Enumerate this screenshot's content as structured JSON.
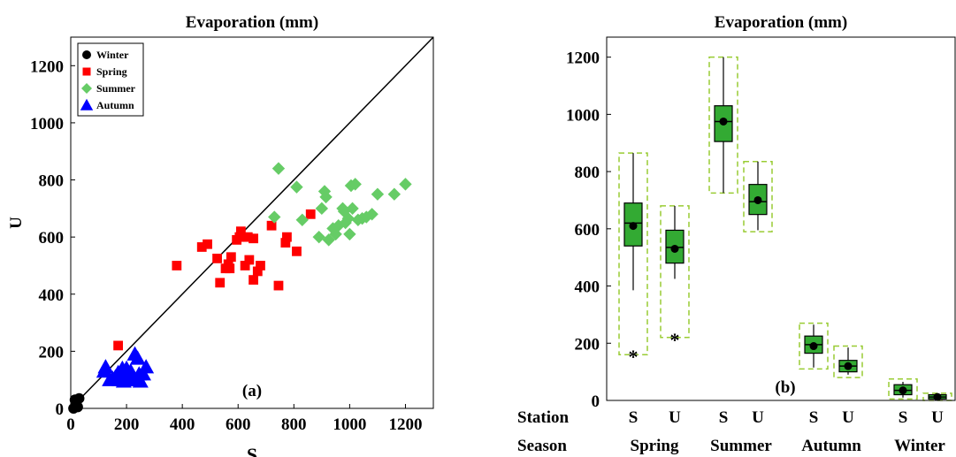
{
  "colors": {
    "winter": "#000000",
    "spring": "#ff0000",
    "summer": "#66cc66",
    "autumn": "#0000ff",
    "box_fill": "#33aa33",
    "box_dashed": "#99cc33"
  },
  "chart_data": [
    {
      "type": "scatter",
      "title": "Evaporation (mm)",
      "xlabel": "S",
      "ylabel": "U",
      "panel_label": "(a)",
      "xlim": [
        0,
        1300
      ],
      "ylim": [
        0,
        1300
      ],
      "xticks": [
        "0",
        "200",
        "400",
        "600",
        "800",
        "1000",
        "1200"
      ],
      "yticks": [
        "0",
        "200",
        "400",
        "600",
        "800",
        "1000",
        "1200"
      ],
      "reference_line": "1:1",
      "legend_position": "top-left",
      "series": [
        {
          "name": "Winter",
          "marker": "circle",
          "points": [
            [
              15,
              30
            ],
            [
              30,
              35
            ],
            [
              25,
              5
            ],
            [
              10,
              0
            ]
          ]
        },
        {
          "name": "Spring",
          "marker": "square",
          "points": [
            [
              170,
              220
            ],
            [
              380,
              500
            ],
            [
              470,
              565
            ],
            [
              490,
              575
            ],
            [
              525,
              525
            ],
            [
              535,
              440
            ],
            [
              555,
              490
            ],
            [
              565,
              505
            ],
            [
              575,
              530
            ],
            [
              570,
              490
            ],
            [
              595,
              590
            ],
            [
              605,
              600
            ],
            [
              610,
              620
            ],
            [
              625,
              500
            ],
            [
              635,
              600
            ],
            [
              640,
              520
            ],
            [
              655,
              595
            ],
            [
              655,
              450
            ],
            [
              670,
              480
            ],
            [
              680,
              500
            ],
            [
              720,
              640
            ],
            [
              745,
              430
            ],
            [
              770,
              580
            ],
            [
              775,
              600
            ],
            [
              810,
              550
            ],
            [
              860,
              680
            ]
          ]
        },
        {
          "name": "Summer",
          "marker": "diamond",
          "points": [
            [
              730,
              670
            ],
            [
              745,
              840
            ],
            [
              810,
              775
            ],
            [
              830,
              660
            ],
            [
              890,
              600
            ],
            [
              900,
              700
            ],
            [
              910,
              760
            ],
            [
              915,
              740
            ],
            [
              925,
              590
            ],
            [
              940,
              630
            ],
            [
              950,
              610
            ],
            [
              960,
              640
            ],
            [
              975,
              700
            ],
            [
              980,
              690
            ],
            [
              985,
              650
            ],
            [
              995,
              665
            ],
            [
              1000,
              610
            ],
            [
              1005,
              780
            ],
            [
              1010,
              700
            ],
            [
              1020,
              785
            ],
            [
              1030,
              660
            ],
            [
              1045,
              665
            ],
            [
              1060,
              670
            ],
            [
              1080,
              680
            ],
            [
              1100,
              750
            ],
            [
              1160,
              750
            ],
            [
              1200,
              785
            ]
          ]
        },
        {
          "name": "Autumn",
          "marker": "triangle",
          "points": [
            [
              120,
              130
            ],
            [
              125,
              145
            ],
            [
              140,
              100
            ],
            [
              150,
              105
            ],
            [
              160,
              110
            ],
            [
              170,
              125
            ],
            [
              175,
              100
            ],
            [
              180,
              115
            ],
            [
              185,
              140
            ],
            [
              190,
              95
            ],
            [
              195,
              105
            ],
            [
              200,
              140
            ],
            [
              205,
              120
            ],
            [
              210,
              100
            ],
            [
              215,
              130
            ],
            [
              220,
              115
            ],
            [
              225,
              110
            ],
            [
              230,
              190
            ],
            [
              235,
              100
            ],
            [
              240,
              175
            ],
            [
              245,
              120
            ],
            [
              250,
              95
            ],
            [
              260,
              120
            ],
            [
              270,
              145
            ]
          ]
        }
      ]
    },
    {
      "type": "box",
      "title": "Evaporation (mm)",
      "panel_label": "(b)",
      "ylim": [
        0,
        1270
      ],
      "yticks": [
        "0",
        "200",
        "400",
        "600",
        "800",
        "1000",
        "1200"
      ],
      "row_labels": [
        "Station",
        "Season"
      ],
      "seasons": [
        "Spring",
        "Summer",
        "Autumn",
        "Winter"
      ],
      "boxes": [
        {
          "station": "S",
          "season": "Spring",
          "dashed_min": 160,
          "dashed_max": 865,
          "whisker_low": 385,
          "whisker_high": 865,
          "q1": 540,
          "median": 620,
          "q3": 690,
          "mean": 610,
          "outlier": 160
        },
        {
          "station": "U",
          "season": "Spring",
          "dashed_min": 220,
          "dashed_max": 680,
          "whisker_low": 425,
          "whisker_high": 680,
          "q1": 480,
          "median": 535,
          "q3": 595,
          "mean": 530,
          "outlier": 220
        },
        {
          "station": "S",
          "season": "Summer",
          "dashed_min": 725,
          "dashed_max": 1200,
          "whisker_low": 725,
          "whisker_high": 1200,
          "q1": 905,
          "median": 975,
          "q3": 1030,
          "mean": 975,
          "outlier": null
        },
        {
          "station": "U",
          "season": "Summer",
          "dashed_min": 590,
          "dashed_max": 835,
          "whisker_low": 595,
          "whisker_high": 835,
          "q1": 650,
          "median": 695,
          "q3": 755,
          "mean": 700,
          "outlier": null
        },
        {
          "station": "S",
          "season": "Autumn",
          "dashed_min": 110,
          "dashed_max": 270,
          "whisker_low": 115,
          "whisker_high": 265,
          "q1": 165,
          "median": 195,
          "q3": 225,
          "mean": 190,
          "outlier": null
        },
        {
          "station": "U",
          "season": "Autumn",
          "dashed_min": 80,
          "dashed_max": 190,
          "whisker_low": 90,
          "whisker_high": 185,
          "q1": 100,
          "median": 120,
          "q3": 140,
          "mean": 120,
          "outlier": null
        },
        {
          "station": "S",
          "season": "Winter",
          "dashed_min": 5,
          "dashed_max": 75,
          "whisker_low": 10,
          "whisker_high": 65,
          "q1": 20,
          "median": 35,
          "q3": 55,
          "mean": 35,
          "outlier": null
        },
        {
          "station": "U",
          "season": "Winter",
          "dashed_min": 0,
          "dashed_max": 25,
          "whisker_low": 2,
          "whisker_high": 22,
          "q1": 5,
          "median": 12,
          "q3": 20,
          "mean": 12,
          "outlier": null
        }
      ]
    }
  ]
}
